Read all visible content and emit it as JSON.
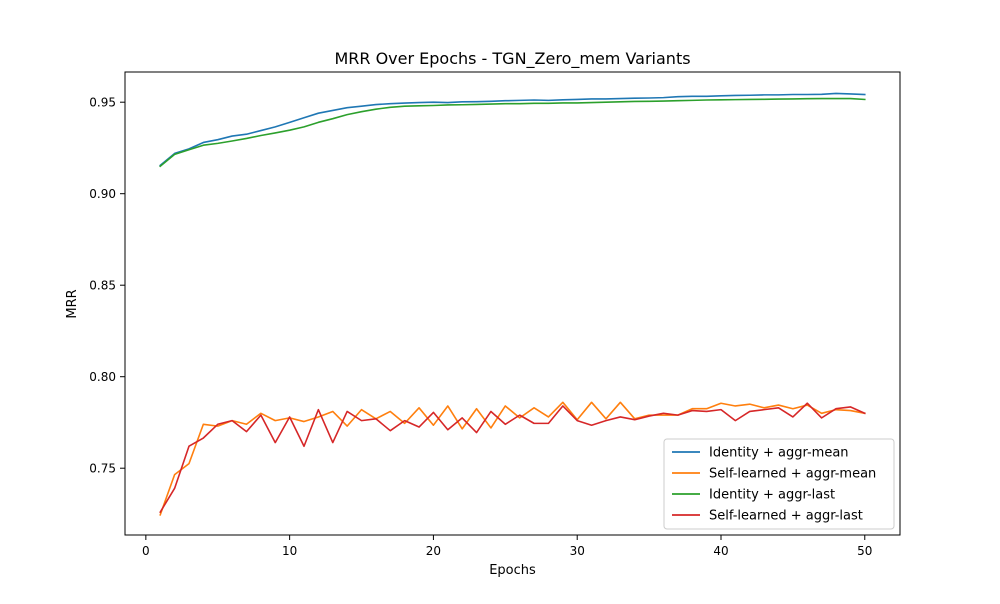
{
  "chart_data": {
    "type": "line",
    "title": "MRR Over Epochs - TGN_Zero_mem Variants",
    "xlabel": "Epochs",
    "ylabel": "MRR",
    "xlim": [
      -1.45,
      52.45
    ],
    "ylim": [
      0.7135,
      0.9665
    ],
    "xticks": [
      0,
      10,
      20,
      30,
      40,
      50
    ],
    "xtick_labels": [
      "0",
      "10",
      "20",
      "30",
      "40",
      "50"
    ],
    "yticks": [
      0.75,
      0.8,
      0.85,
      0.9,
      0.95
    ],
    "ytick_labels": [
      "0.75",
      "0.80",
      "0.85",
      "0.90",
      "0.95"
    ],
    "grid": false,
    "legend_position": "lower-right",
    "x": [
      1,
      2,
      3,
      4,
      5,
      6,
      7,
      8,
      9,
      10,
      11,
      12,
      13,
      14,
      15,
      16,
      17,
      18,
      19,
      20,
      21,
      22,
      23,
      24,
      25,
      26,
      27,
      28,
      29,
      30,
      31,
      32,
      33,
      34,
      35,
      36,
      37,
      38,
      39,
      40,
      41,
      42,
      43,
      44,
      45,
      46,
      47,
      48,
      49,
      50
    ],
    "series": [
      {
        "name": "Identity + aggr-mean",
        "color": "#1f77b4",
        "values": [
          0.9155,
          0.922,
          0.9245,
          0.928,
          0.9295,
          0.9315,
          0.9325,
          0.9345,
          0.9365,
          0.939,
          0.9415,
          0.944,
          0.9455,
          0.947,
          0.9478,
          0.9487,
          0.9492,
          0.9495,
          0.9498,
          0.95,
          0.9498,
          0.9502,
          0.9503,
          0.9505,
          0.9508,
          0.951,
          0.9512,
          0.951,
          0.9513,
          0.9515,
          0.9518,
          0.9518,
          0.952,
          0.9522,
          0.9523,
          0.9525,
          0.953,
          0.9532,
          0.9532,
          0.9535,
          0.9537,
          0.9538,
          0.954,
          0.954,
          0.9542,
          0.9542,
          0.9543,
          0.9548,
          0.9545,
          0.9542
        ]
      },
      {
        "name": "Self-learned + aggr-mean",
        "color": "#ff7f0e",
        "values": [
          0.7245,
          0.7465,
          0.7525,
          0.774,
          0.773,
          0.776,
          0.774,
          0.78,
          0.776,
          0.7775,
          0.7755,
          0.778,
          0.781,
          0.773,
          0.782,
          0.777,
          0.781,
          0.7745,
          0.783,
          0.7735,
          0.784,
          0.7715,
          0.7825,
          0.772,
          0.784,
          0.7775,
          0.783,
          0.778,
          0.786,
          0.7765,
          0.786,
          0.777,
          0.786,
          0.777,
          0.779,
          0.779,
          0.779,
          0.7825,
          0.7825,
          0.7855,
          0.784,
          0.785,
          0.783,
          0.7845,
          0.7825,
          0.7845,
          0.78,
          0.782,
          0.7815,
          0.78
        ]
      },
      {
        "name": "Identity + aggr-last",
        "color": "#2ca02c",
        "values": [
          0.915,
          0.9215,
          0.924,
          0.9265,
          0.9275,
          0.9288,
          0.9302,
          0.9318,
          0.9332,
          0.9347,
          0.9365,
          0.939,
          0.941,
          0.9432,
          0.9448,
          0.9462,
          0.9472,
          0.9478,
          0.948,
          0.9482,
          0.9485,
          0.9486,
          0.9488,
          0.949,
          0.9492,
          0.9492,
          0.9494,
          0.9494,
          0.9496,
          0.9496,
          0.9498,
          0.95,
          0.9502,
          0.9504,
          0.9505,
          0.9506,
          0.9508,
          0.951,
          0.9512,
          0.9513,
          0.9514,
          0.9515,
          0.9516,
          0.9517,
          0.9518,
          0.9519,
          0.952,
          0.952,
          0.952,
          0.9515
        ]
      },
      {
        "name": "Self-learned + aggr-last",
        "color": "#d62728",
        "values": [
          0.726,
          0.739,
          0.762,
          0.7665,
          0.774,
          0.776,
          0.77,
          0.779,
          0.764,
          0.778,
          0.762,
          0.782,
          0.764,
          0.781,
          0.776,
          0.777,
          0.7705,
          0.776,
          0.7725,
          0.7805,
          0.771,
          0.7775,
          0.7695,
          0.781,
          0.774,
          0.779,
          0.7745,
          0.7745,
          0.784,
          0.776,
          0.7735,
          0.776,
          0.778,
          0.7765,
          0.7785,
          0.78,
          0.779,
          0.7815,
          0.781,
          0.782,
          0.776,
          0.781,
          0.782,
          0.783,
          0.778,
          0.7855,
          0.7775,
          0.7825,
          0.7835,
          0.78
        ]
      }
    ]
  }
}
